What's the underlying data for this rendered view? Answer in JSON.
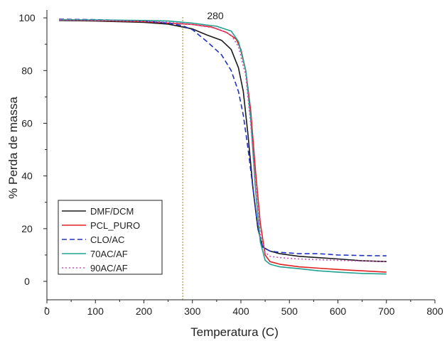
{
  "chart_data": {
    "type": "line",
    "xlabel": "Temperatura (C)",
    "ylabel": "% Perda de massa",
    "xlim": [
      0,
      800
    ],
    "ylim": [
      -7,
      103
    ],
    "x_ticks": [
      "0",
      "100",
      "200",
      "300",
      "400",
      "500",
      "600",
      "700",
      "800"
    ],
    "y_ticks": [
      {
        "label": "0",
        "value": 0
      },
      {
        "label": "20",
        "value": 20
      },
      {
        "label": "40",
        "value": 40
      },
      {
        "label": "60",
        "value": 60
      },
      {
        "label": "80",
        "value": 80
      },
      {
        "label": "100",
        "value": 100
      }
    ],
    "grid": false,
    "legend_position": "bottom-left",
    "annotation": {
      "text": "280",
      "x": 280,
      "color": "#a8a040"
    },
    "series": [
      {
        "name": "DMF/DCM",
        "color": "#1a1a1a",
        "dash": "solid",
        "x": [
          25,
          100,
          200,
          250,
          300,
          330,
          360,
          380,
          395,
          405,
          415,
          425,
          435,
          445,
          460,
          480,
          520,
          560,
          600,
          650,
          700
        ],
        "y": [
          99,
          98.8,
          98.3,
          97.6,
          95.8,
          93.5,
          91.5,
          88,
          81,
          72,
          55,
          35,
          20,
          13,
          11.5,
          10.5,
          9.5,
          9,
          8.5,
          7.8,
          7.5
        ]
      },
      {
        "name": "PCL_PURO",
        "color": "#e02020",
        "dash": "solid",
        "x": [
          25,
          100,
          200,
          250,
          300,
          340,
          370,
          390,
          400,
          410,
          420,
          430,
          440,
          450,
          460,
          480,
          520,
          560,
          600,
          650,
          700
        ],
        "y": [
          99.2,
          99,
          98.6,
          98,
          97.5,
          96.5,
          94.5,
          92,
          88,
          80,
          65,
          42,
          22,
          10,
          7.5,
          6.5,
          5.5,
          5,
          4.5,
          4,
          3.5
        ]
      },
      {
        "name": "CLO/AC",
        "color": "#2030c0",
        "dash": "dashed",
        "x": [
          25,
          100,
          200,
          250,
          280,
          300,
          330,
          360,
          380,
          395,
          405,
          415,
          425,
          435,
          445,
          460,
          480,
          520,
          560,
          600,
          650,
          700
        ],
        "y": [
          99.5,
          99.3,
          98.8,
          98,
          97,
          95.5,
          91,
          86,
          80,
          72,
          63,
          50,
          35,
          20,
          13,
          11.5,
          11,
          10.5,
          10.5,
          10,
          9.8,
          9.7
        ]
      },
      {
        "name": "70AC/AF",
        "color": "#20a090",
        "dash": "solid",
        "x": [
          25,
          100,
          200,
          250,
          300,
          350,
          380,
          395,
          410,
          420,
          430,
          440,
          450,
          460,
          480,
          520,
          560,
          600,
          650,
          700
        ],
        "y": [
          99.3,
          99.2,
          99,
          98.8,
          98,
          96.8,
          95,
          91,
          80,
          62,
          35,
          15,
          8,
          6.5,
          5.5,
          4.8,
          4,
          3.5,
          3,
          2.8
        ]
      },
      {
        "name": "90AC/AF",
        "color": "#d050c0",
        "dash": "dotted",
        "x": [
          25,
          100,
          200,
          250,
          300,
          350,
          380,
          395,
          410,
          420,
          430,
          440,
          450,
          460,
          480,
          520,
          560,
          600,
          650,
          700
        ],
        "y": [
          99.2,
          99,
          98.7,
          98.3,
          97.5,
          96,
          93.5,
          89,
          78,
          60,
          37,
          18,
          11,
          9.5,
          9,
          8.5,
          8.2,
          8,
          7.7,
          7.5
        ]
      }
    ]
  }
}
